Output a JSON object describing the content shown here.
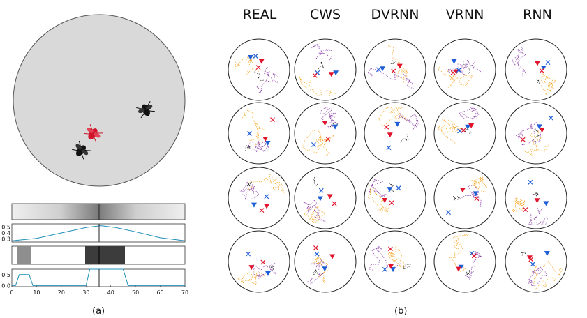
{
  "figure": {
    "panel_a_caption": "(a)",
    "panel_b_caption": "(b)",
    "column_headers": [
      "REAL",
      "CWS",
      "DVRNN",
      "VRNN",
      "RNN"
    ],
    "colors": {
      "arena": "#d9d9d9",
      "fly_red": "#d0142c",
      "fly_black": "#111111",
      "curve": "#1f8fb8",
      "traj_orange": "#f5a623",
      "traj_purple": "#8b3fa8",
      "traj_black": "#222222",
      "marker_blue": "#1f5fd6",
      "marker_red": "#e0142c"
    }
  },
  "chart_data": [
    {
      "type": "line",
      "panel": "a-row2",
      "yticks": [
        "0.5",
        "0.4",
        "0.3"
      ],
      "ylim": [
        0.25,
        0.55
      ],
      "x": [
        0,
        10,
        20,
        30,
        36,
        42,
        50,
        60,
        70
      ],
      "values": [
        0.27,
        0.31,
        0.4,
        0.49,
        0.52,
        0.49,
        0.42,
        0.32,
        0.27
      ]
    },
    {
      "type": "line",
      "panel": "a-row4",
      "yticks": [
        "0.5",
        "0.0"
      ],
      "xticks": [
        "0",
        "10",
        "20",
        "30",
        "40",
        "50",
        "60",
        "70"
      ],
      "xlim": [
        0,
        70
      ],
      "ylim": [
        -0.05,
        0.75
      ],
      "x": [
        0,
        1.5,
        3,
        7,
        8.5,
        30,
        31.5,
        45,
        47,
        70
      ],
      "values": [
        0,
        0,
        0.5,
        0.5,
        0,
        0,
        0.75,
        0.75,
        0,
        0
      ]
    }
  ]
}
